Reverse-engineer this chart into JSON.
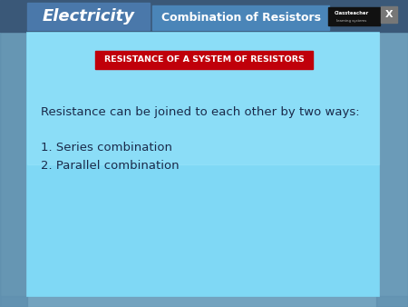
{
  "fig_width": 4.5,
  "fig_height": 3.38,
  "dpi": 100,
  "bg_photo_color": "#88b8d0",
  "bg_left_strip": "#6090b0",
  "bg_right_strip": "#6090b0",
  "header_bg_color": "#2a2a2a",
  "elec_tab_color": "#4a78aa",
  "elec_tab_text": "Electricity",
  "elec_tab_text_color": "#ffffff",
  "elec_tab_fontsize": 13,
  "comb_tab_color": "#4a85b8",
  "comb_tab_text": "Combination of Resistors",
  "comb_tab_text_color": "#ffffff",
  "comb_tab_fontsize": 9,
  "ct_box_color": "#111111",
  "ct_text": "Classteacher",
  "ct_sub_text": "learning systems",
  "x_btn_color": "#777777",
  "main_rect_color": "#7fd8f5",
  "main_rect_border": "#555577",
  "title_box_color": "#c0000a",
  "title_box_text": "RESISTANCE OF A SYSTEM OF RESISTORS",
  "title_text_color": "#ffffff",
  "title_fontsize": 6.8,
  "body_text_color": "#1a2a4a",
  "body_line1": "Resistance can be joined to each other by two ways:",
  "body_line2": "1. Series combination",
  "body_line3": "2. Parallel combination",
  "body_fontsize": 9.5
}
